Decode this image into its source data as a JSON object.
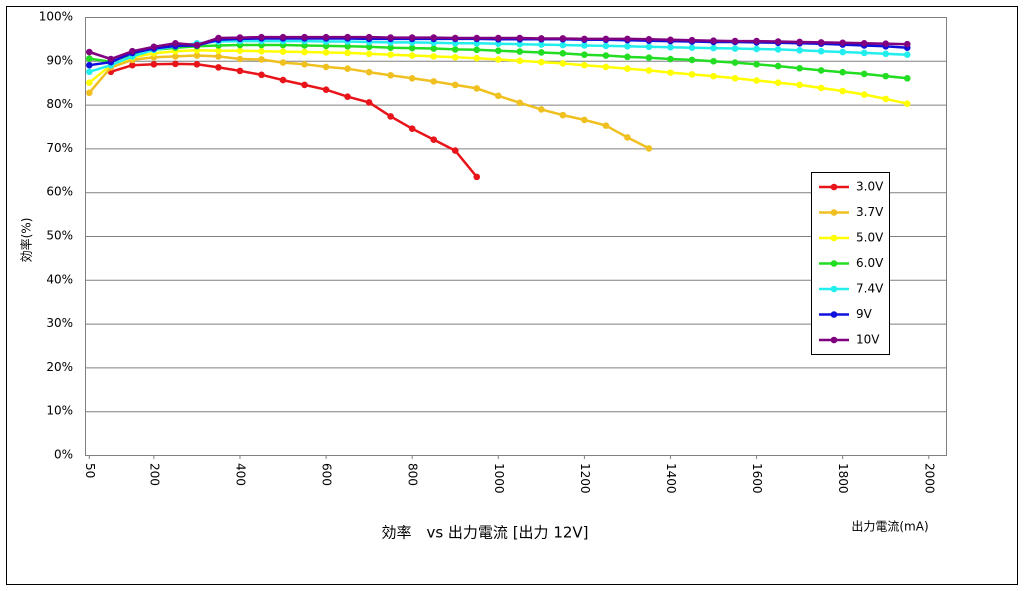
{
  "chart_data": {
    "type": "line",
    "title": "効率　vs 出力電流 [出力 12V]",
    "x_label": "出力電流(mA)",
    "y_label": "効率(%)",
    "x": [
      50,
      100,
      150,
      200,
      250,
      300,
      350,
      400,
      450,
      500,
      550,
      600,
      650,
      700,
      750,
      800,
      850,
      900,
      950,
      1000,
      1050,
      1100,
      1150,
      1200,
      1250,
      1300,
      1350,
      1400,
      1450,
      1500,
      1550,
      1600,
      1650,
      1700,
      1750,
      1800,
      1850,
      1900,
      1950
    ],
    "series": [
      {
        "name": "3.0V",
        "color": "#e8141a",
        "values": [
          null,
          87.5,
          89,
          89.2,
          89.3,
          89.2,
          88.5,
          87.7,
          86.8,
          85.6,
          84.5,
          83.4,
          81.8,
          80.5,
          77.3,
          74.5,
          72,
          69.5,
          63.5,
          null,
          null,
          null,
          null,
          null,
          null,
          null,
          null,
          null,
          null,
          null,
          null,
          null,
          null,
          null,
          null,
          null,
          null,
          null,
          null
        ]
      },
      {
        "name": "3.7V",
        "color": "#f0c020",
        "values": [
          82.7,
          88.5,
          90.2,
          90.8,
          91,
          91.2,
          91,
          90.4,
          90.3,
          89.6,
          89.2,
          88.6,
          88.2,
          87.4,
          86.7,
          86,
          85.3,
          84.5,
          83.7,
          82,
          80.4,
          78.9,
          77.6,
          76.5,
          75.2,
          72.5,
          70,
          null,
          null,
          null,
          null,
          null,
          null,
          null,
          null,
          null,
          null,
          null,
          null
        ]
      },
      {
        "name": "5.0V",
        "color": "#ffff00",
        "values": [
          85,
          89,
          90.8,
          91.7,
          92.2,
          92.4,
          92.3,
          92.3,
          92.2,
          92.1,
          92,
          91.9,
          91.8,
          91.6,
          91.4,
          91.2,
          91,
          90.8,
          90.6,
          90.3,
          90,
          89.7,
          89.4,
          89,
          88.6,
          88.2,
          87.8,
          87.3,
          86.9,
          86.5,
          86,
          85.5,
          85,
          84.5,
          83.8,
          83.1,
          82.3,
          81.3,
          80.2
        ]
      },
      {
        "name": "6.0V",
        "color": "#22dd22",
        "values": [
          90.5,
          89.8,
          91.5,
          92.5,
          93,
          93.3,
          93.5,
          93.6,
          93.6,
          93.6,
          93.5,
          93.4,
          93.3,
          93.2,
          93,
          92.9,
          92.8,
          92.6,
          92.5,
          92.3,
          92.1,
          91.9,
          91.7,
          91.4,
          91.2,
          90.9,
          90.7,
          90.4,
          90.2,
          89.9,
          89.6,
          89.2,
          88.8,
          88.3,
          87.8,
          87.4,
          87,
          86.5,
          86
        ]
      },
      {
        "name": "7.4V",
        "color": "#22eeee",
        "values": [
          87.5,
          89,
          91,
          92.5,
          93.3,
          94,
          94.4,
          94.5,
          94.5,
          94.5,
          94.5,
          94.4,
          94.4,
          94.3,
          94.2,
          94.2,
          94.1,
          94,
          94,
          93.9,
          93.8,
          93.7,
          93.6,
          93.5,
          93.4,
          93.3,
          93.2,
          93.1,
          93,
          92.9,
          92.8,
          92.7,
          92.6,
          92.4,
          92.2,
          92,
          91.8,
          91.6,
          91.4
        ]
      },
      {
        "name": "9V",
        "color": "#1010dd",
        "values": [
          89,
          89.7,
          91.8,
          92.8,
          93.4,
          93.5,
          94.8,
          95,
          95.1,
          95.1,
          95.1,
          95.1,
          95.1,
          95,
          95,
          95,
          95,
          95,
          95,
          94.9,
          94.9,
          94.9,
          94.9,
          94.8,
          94.8,
          94.7,
          94.6,
          94.5,
          94.4,
          94.3,
          94.3,
          94.2,
          94.1,
          94,
          93.9,
          93.7,
          93.5,
          93.3,
          93
        ]
      },
      {
        "name": "10V",
        "color": "#800080",
        "values": [
          92,
          90.4,
          92.2,
          93.2,
          94,
          93.6,
          95.2,
          95.3,
          95.4,
          95.4,
          95.4,
          95.4,
          95.4,
          95.4,
          95.3,
          95.3,
          95.3,
          95.2,
          95.2,
          95.2,
          95.2,
          95.1,
          95.1,
          95,
          95,
          95,
          94.9,
          94.8,
          94.7,
          94.6,
          94.5,
          94.5,
          94.4,
          94.3,
          94.2,
          94.1,
          94,
          93.9,
          93.8
        ]
      }
    ],
    "xlim": [
      40,
      2040
    ],
    "ylim": [
      0,
      100
    ],
    "xticks": [
      50,
      200,
      400,
      600,
      800,
      1000,
      1200,
      1400,
      1600,
      1800,
      2000
    ],
    "yticks": [
      {
        "value": 0,
        "label": "0%"
      },
      {
        "value": 10,
        "label": "10%"
      },
      {
        "value": 20,
        "label": "20%"
      },
      {
        "value": 30,
        "label": "30%"
      },
      {
        "value": 40,
        "label": "40%"
      },
      {
        "value": 50,
        "label": "50%"
      },
      {
        "value": 60,
        "label": "60%"
      },
      {
        "value": 70,
        "label": "70%"
      },
      {
        "value": 80,
        "label": "80%"
      },
      {
        "value": 90,
        "label": "90%"
      },
      {
        "value": 100,
        "label": "100%"
      }
    ],
    "grid": true,
    "legend": "right"
  }
}
